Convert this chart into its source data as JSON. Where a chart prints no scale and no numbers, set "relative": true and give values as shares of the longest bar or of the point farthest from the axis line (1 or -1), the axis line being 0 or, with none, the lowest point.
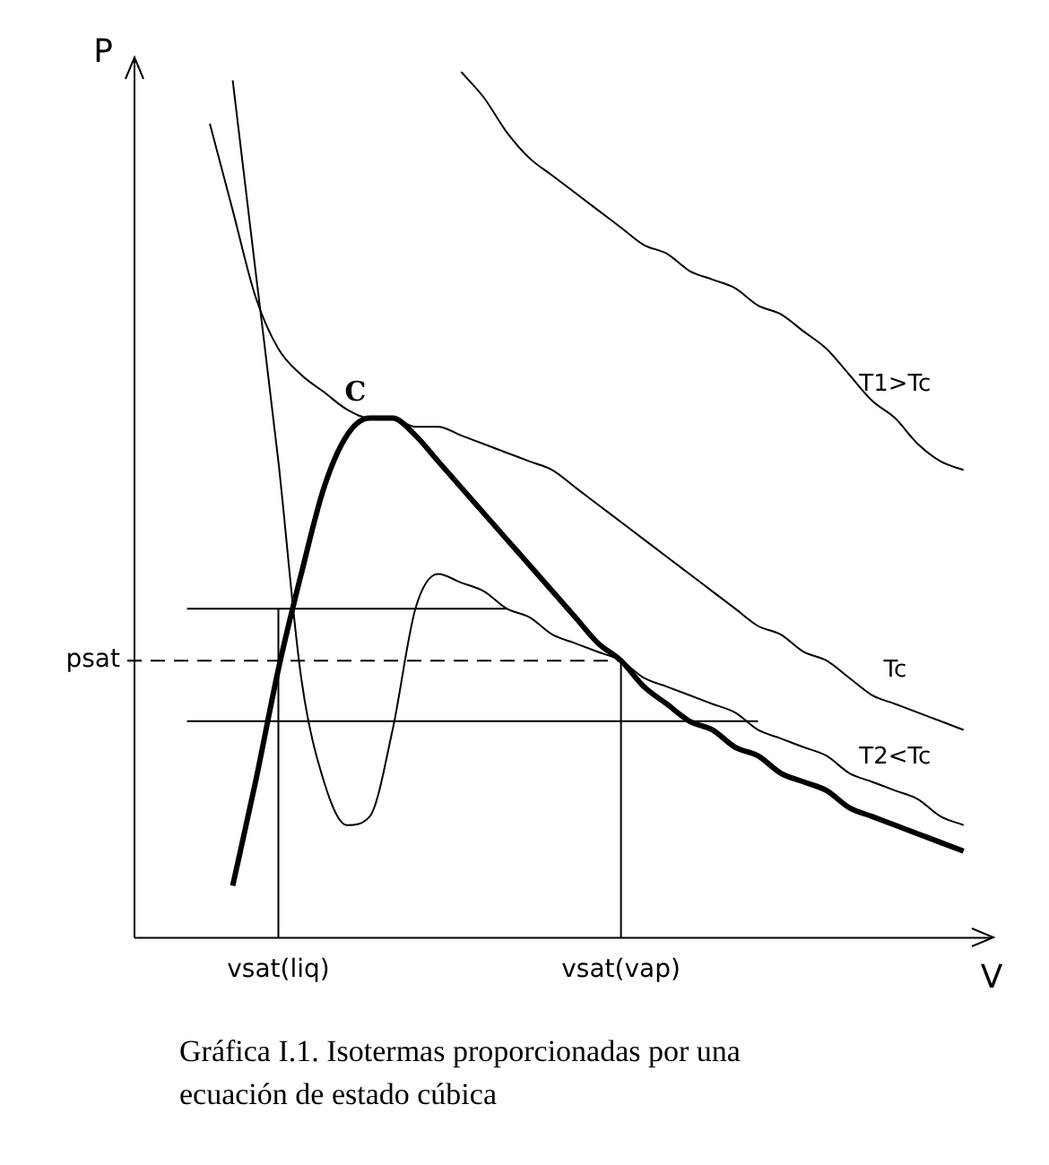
{
  "chart_data": {
    "type": "line",
    "relative": true,
    "xlabel": "V",
    "ylabel": "P",
    "tick_labels": "x",
    "grid": false,
    "legend": false,
    "marker": "none",
    "categories": [
      null,
      null,
      null,
      null,
      "vsat(liq)",
      null,
      null,
      null,
      null,
      null,
      null,
      null,
      null,
      null,
      null,
      null,
      null,
      null,
      null,
      "vsat(vap)",
      null,
      null,
      null,
      null,
      null,
      null,
      null,
      null,
      null,
      null,
      null,
      null,
      null,
      null,
      null
    ],
    "series": [
      {
        "name": "T1>Tc",
        "color": "#000000",
        "values": [
          null,
          null,
          null,
          null,
          null,
          null,
          null,
          null,
          null,
          null,
          null,
          null,
          1.0,
          0.97,
          0.93,
          0.9,
          0.88,
          0.86,
          0.84,
          0.82,
          0.8,
          0.79,
          0.77,
          0.76,
          0.75,
          0.73,
          0.72,
          0.7,
          0.68,
          0.65,
          0.62,
          0.6,
          0.57,
          0.55,
          0.54
        ]
      },
      {
        "name": "Tc",
        "color": "#000000",
        "values": [
          null,
          0.94,
          0.84,
          0.74,
          0.68,
          0.65,
          0.63,
          0.61,
          0.6,
          0.6,
          0.59,
          0.59,
          0.58,
          0.57,
          0.56,
          0.55,
          0.54,
          0.52,
          0.5,
          0.48,
          0.46,
          0.44,
          0.42,
          0.4,
          0.38,
          0.36,
          0.35,
          0.33,
          0.32,
          0.3,
          0.28,
          0.27,
          0.26,
          0.25,
          0.24
        ]
      },
      {
        "name": "T2<Tc",
        "color": "#000000",
        "values": [
          null,
          null,
          0.99,
          0.77,
          0.55,
          0.3,
          0.18,
          0.13,
          0.14,
          0.24,
          0.38,
          0.42,
          0.41,
          0.4,
          0.38,
          0.37,
          0.35,
          0.34,
          0.33,
          0.32,
          0.3,
          0.29,
          0.28,
          0.27,
          0.26,
          0.24,
          0.23,
          0.22,
          0.21,
          0.19,
          0.18,
          0.17,
          0.16,
          0.14,
          0.13
        ]
      },
      {
        "color": "#000000",
        "values": [
          null,
          null,
          0.06,
          0.18,
          0.31,
          0.42,
          0.52,
          0.58,
          0.6,
          0.6,
          0.58,
          0.55,
          0.52,
          0.49,
          0.46,
          0.43,
          0.4,
          0.37,
          0.34,
          0.32,
          0.29,
          0.27,
          0.25,
          0.24,
          0.22,
          0.21,
          0.19,
          0.18,
          0.17,
          0.15,
          0.14,
          0.13,
          0.12,
          0.11,
          0.1
        ]
      },
      {
        "color": "#000000",
        "values": [
          0.38,
          0.38,
          0.38,
          0.38,
          0.38,
          0.38,
          0.38,
          0.38,
          0.38,
          0.38,
          0.38,
          0.38,
          0.38,
          0.38,
          0.38,
          null,
          null,
          null,
          null,
          null,
          null,
          null,
          null,
          null,
          null,
          null,
          null,
          null,
          null,
          null,
          null,
          null,
          null,
          null,
          null
        ]
      },
      {
        "color": "#000000",
        "values": [
          0.25,
          0.25,
          0.25,
          0.25,
          0.25,
          0.25,
          0.25,
          0.25,
          0.25,
          0.25,
          0.25,
          0.25,
          0.25,
          0.25,
          0.25,
          0.25,
          0.25,
          0.25,
          0.25,
          0.25,
          0.25,
          0.25,
          0.25,
          0.25,
          0.25,
          0.25,
          null,
          null,
          null,
          null,
          null,
          null,
          null,
          null,
          null
        ]
      }
    ],
    "ref_lines": [
      {
        "axis": "x",
        "value": "vsat(liq)"
      },
      {
        "axis": "x",
        "value": "vsat(vap)"
      },
      {
        "axis": "y",
        "value": 0.32,
        "label": "psat",
        "line_style": "dashed"
      }
    ],
    "annotations": [
      {
        "text": "C",
        "y": 0.6
      },
      "Gráfica I.1. Isotermas proporcionadas por una ecuación de estado cúbica"
    ]
  }
}
